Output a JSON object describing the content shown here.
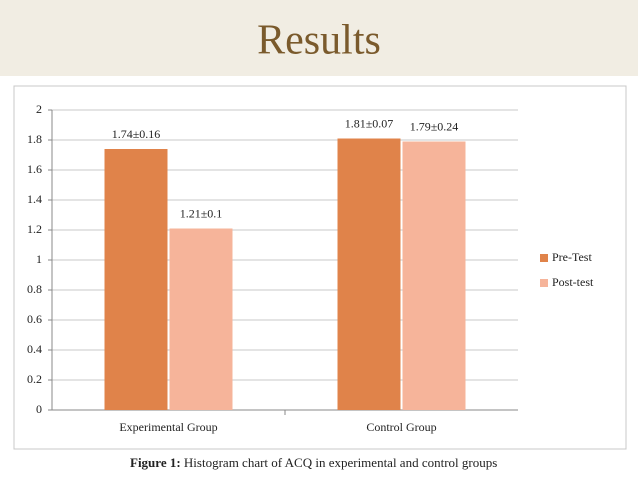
{
  "chart_data": {
    "type": "bar",
    "title": "Results",
    "categories": [
      "Experimental Group",
      "Control Group"
    ],
    "series": [
      {
        "name": "Pre-Test",
        "color": "#e0834a",
        "values": [
          1.74,
          1.81
        ],
        "value_labels": [
          "1.74±0.16",
          "1.81±0.07"
        ]
      },
      {
        "name": "Post-test",
        "color": "#f6b49a",
        "values": [
          1.21,
          1.79
        ],
        "value_labels": [
          "1.21±0.1",
          "1.79±0.24"
        ]
      }
    ],
    "ylim": [
      0,
      2
    ],
    "yticks": [
      0,
      0.2,
      0.4,
      0.6,
      0.8,
      1,
      1.2,
      1.4,
      1.6,
      1.8,
      2
    ],
    "grid": true,
    "legend": "right",
    "caption_label": "Figure 1:",
    "caption": "Histogram chart of ACQ in experimental and control groups"
  }
}
